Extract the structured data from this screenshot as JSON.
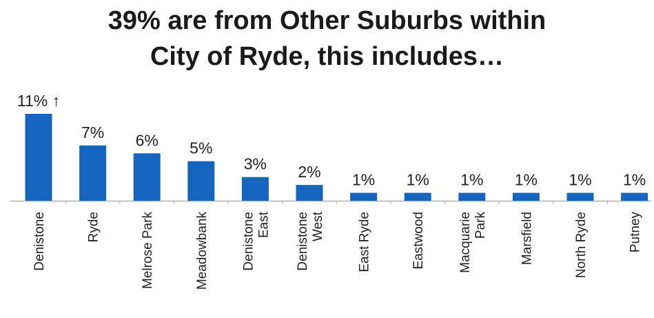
{
  "title_line1": "39% are from Other Suburbs within",
  "title_line2": "City of Ryde, this includes…",
  "colors": {
    "bar": "#1565C0",
    "axis": "#b0b0b0",
    "text": "#222222"
  },
  "chart_data": {
    "type": "bar",
    "title": "39% are from Other Suburbs within City of Ryde, this includes…",
    "categories": [
      [
        "Denistone"
      ],
      [
        "Ryde"
      ],
      [
        "Melrose Park"
      ],
      [
        "Meadowbank"
      ],
      [
        "Denistone",
        "East"
      ],
      [
        "Denistone",
        "West"
      ],
      [
        "East Ryde"
      ],
      [
        "Eastwood"
      ],
      [
        "Macquarie",
        "Park"
      ],
      [
        "Marsfield"
      ],
      [
        "North Ryde"
      ],
      [
        "Putney"
      ]
    ],
    "values": [
      11,
      7,
      6,
      5,
      3,
      2,
      1,
      1,
      1,
      1,
      1,
      1
    ],
    "data_labels": [
      "11% ↑",
      "7%",
      "6%",
      "5%",
      "3%",
      "2%",
      "1%",
      "1%",
      "1%",
      "1%",
      "1%",
      "1%"
    ],
    "ylim": [
      0,
      11
    ],
    "xlabel": "",
    "ylabel": "",
    "grid": false,
    "legend": "none"
  }
}
